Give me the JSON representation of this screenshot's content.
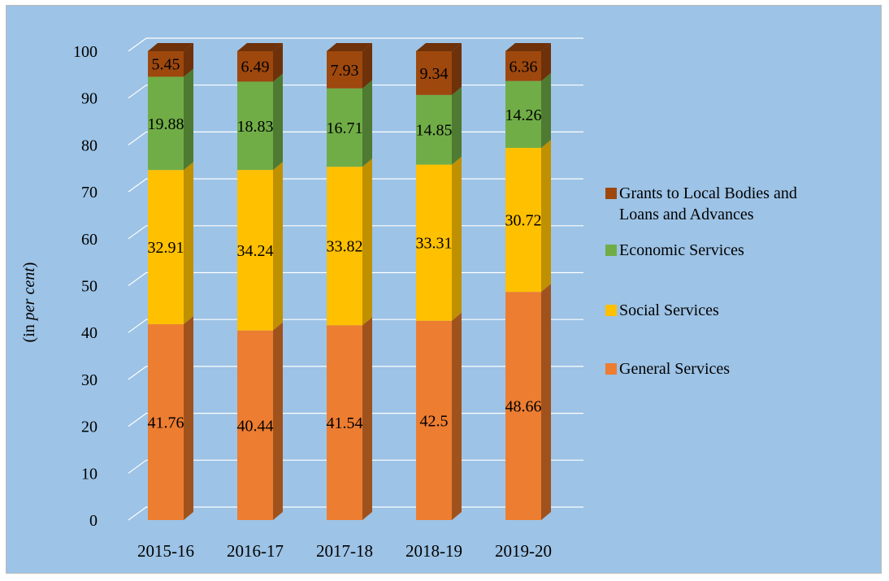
{
  "chart_data": {
    "type": "bar",
    "stacked": true,
    "style": "3d",
    "title": "",
    "xlabel": "",
    "ylabel_prefix": "(in ",
    "ylabel_italic": "per cent",
    "ylabel_suffix": ")",
    "ylim": [
      0,
      100
    ],
    "yticks": [
      0,
      10,
      20,
      30,
      40,
      50,
      60,
      70,
      80,
      90,
      100
    ],
    "grid": true,
    "legend_position": "right",
    "categories": [
      "2015-16",
      "2016-17",
      "2017-18",
      "2018-19",
      "2019-20"
    ],
    "series": [
      {
        "name": "General Services",
        "color": "#ed7d31",
        "side_color": "#a0521d",
        "values": [
          41.76,
          40.44,
          41.54,
          42.5,
          48.66
        ]
      },
      {
        "name": "Social Services",
        "color": "#ffc000",
        "side_color": "#bf9000",
        "values": [
          32.91,
          34.24,
          33.82,
          33.31,
          30.72
        ]
      },
      {
        "name": "Economic Services",
        "color": "#70ad47",
        "side_color": "#4e7a32",
        "values": [
          19.88,
          18.83,
          16.71,
          14.85,
          14.26
        ]
      },
      {
        "name": "Grants to Local Bodies and Loans and Advances",
        "color": "#9e480e",
        "side_color": "#6e3109",
        "values": [
          5.45,
          6.49,
          7.93,
          9.34,
          6.36
        ]
      }
    ],
    "legend": [
      {
        "lines": [
          "Grants to Local Bodies and",
          "Loans and Advances"
        ],
        "color": "#9e480e"
      },
      {
        "lines": [
          "Economic Services"
        ],
        "color": "#70ad47"
      },
      {
        "lines": [
          "Social Services"
        ],
        "color": "#ffc000"
      },
      {
        "lines": [
          "General Services"
        ],
        "color": "#ed7d31"
      }
    ]
  }
}
